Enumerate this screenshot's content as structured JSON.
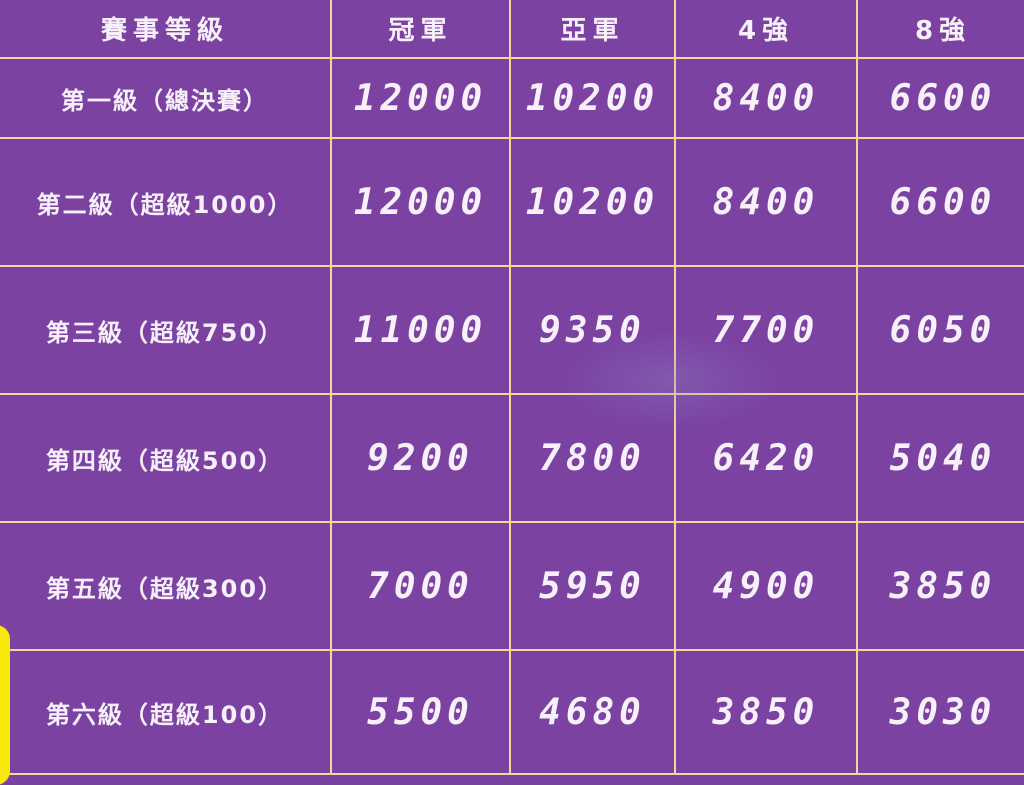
{
  "table": {
    "headers": [
      "賽事等級",
      "冠軍",
      "亞軍",
      "4強",
      "8強"
    ],
    "rows": [
      {
        "level": "第一級（總決賽）",
        "values": [
          "12000",
          "10200",
          "8400",
          "6600"
        ]
      },
      {
        "level": "第二級（超級1000）",
        "values": [
          "12000",
          "10200",
          "8400",
          "6600"
        ]
      },
      {
        "level": "第三級（超級750）",
        "values": [
          "11000",
          "9350",
          "7700",
          "6050"
        ]
      },
      {
        "level": "第四級（超級500）",
        "values": [
          "9200",
          "7800",
          "6420",
          "5040"
        ]
      },
      {
        "level": "第五級（超級300）",
        "values": [
          "7000",
          "5950",
          "4900",
          "3850"
        ]
      },
      {
        "level": "第六級（超級100）",
        "values": [
          "5500",
          "4680",
          "3850",
          "3030"
        ]
      }
    ]
  },
  "colors": {
    "background": "#7b42a2",
    "grid": "#f2d79a",
    "text": "#f8f0fb",
    "accent": "#f7e80a"
  }
}
